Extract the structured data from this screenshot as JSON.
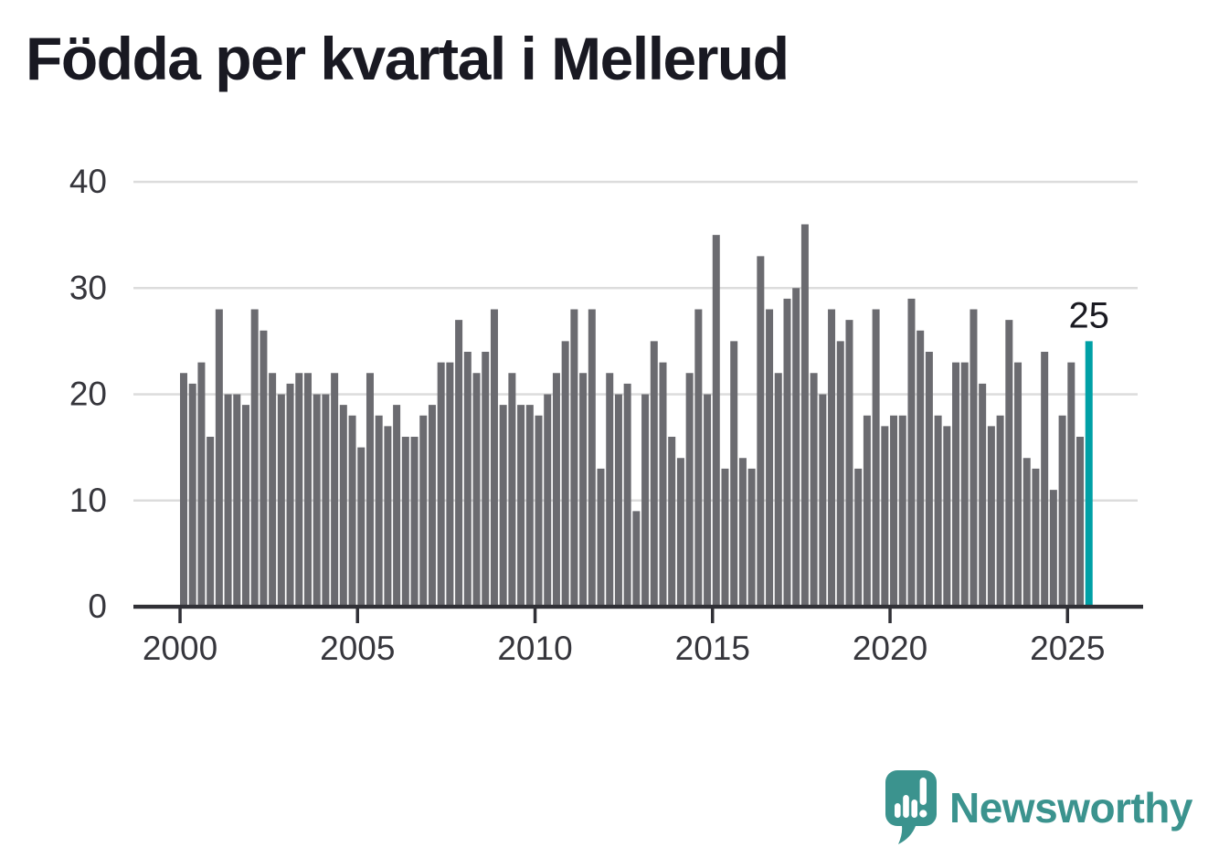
{
  "title": "Födda per kvartal i Mellerud",
  "branding": {
    "name": "Newsworthy"
  },
  "colors": {
    "background": "#ffffff",
    "bar": "#6b6b70",
    "highlight": "#00a0a6",
    "grid": "#dcdcdc",
    "axis": "#303036",
    "tick_label": "#36363c",
    "annotation": "#1a1a21",
    "title": "#191922",
    "brand_teal": "#3b938e"
  },
  "chart_data": {
    "type": "bar",
    "title": "Födda per kvartal i Mellerud",
    "x_unit": "quarter",
    "start_year": 2000,
    "start_quarter": 1,
    "end_year": 2025,
    "end_quarter": 3,
    "values": [
      22,
      21,
      23,
      16,
      28,
      20,
      20,
      19,
      28,
      26,
      22,
      20,
      21,
      22,
      22,
      20,
      20,
      22,
      19,
      18,
      15,
      22,
      18,
      17,
      19,
      16,
      16,
      18,
      19,
      23,
      23,
      27,
      24,
      22,
      24,
      28,
      19,
      22,
      19,
      19,
      18,
      20,
      22,
      25,
      28,
      22,
      28,
      13,
      22,
      20,
      21,
      9,
      20,
      25,
      23,
      16,
      14,
      22,
      28,
      20,
      35,
      13,
      25,
      14,
      13,
      33,
      28,
      22,
      29,
      30,
      36,
      22,
      20,
      28,
      25,
      27,
      13,
      18,
      28,
      17,
      18,
      18,
      29,
      26,
      24,
      18,
      17,
      23,
      23,
      28,
      21,
      17,
      18,
      27,
      23,
      14,
      13,
      24,
      11,
      18,
      23,
      16,
      25
    ],
    "highlight_index": 102,
    "highlight_label": "25",
    "x_ticks": [
      2000,
      2005,
      2010,
      2015,
      2020,
      2025
    ],
    "y_ticks": [
      0,
      10,
      20,
      30,
      40
    ],
    "ylim": [
      0,
      40
    ],
    "grid": true,
    "legend": false
  }
}
